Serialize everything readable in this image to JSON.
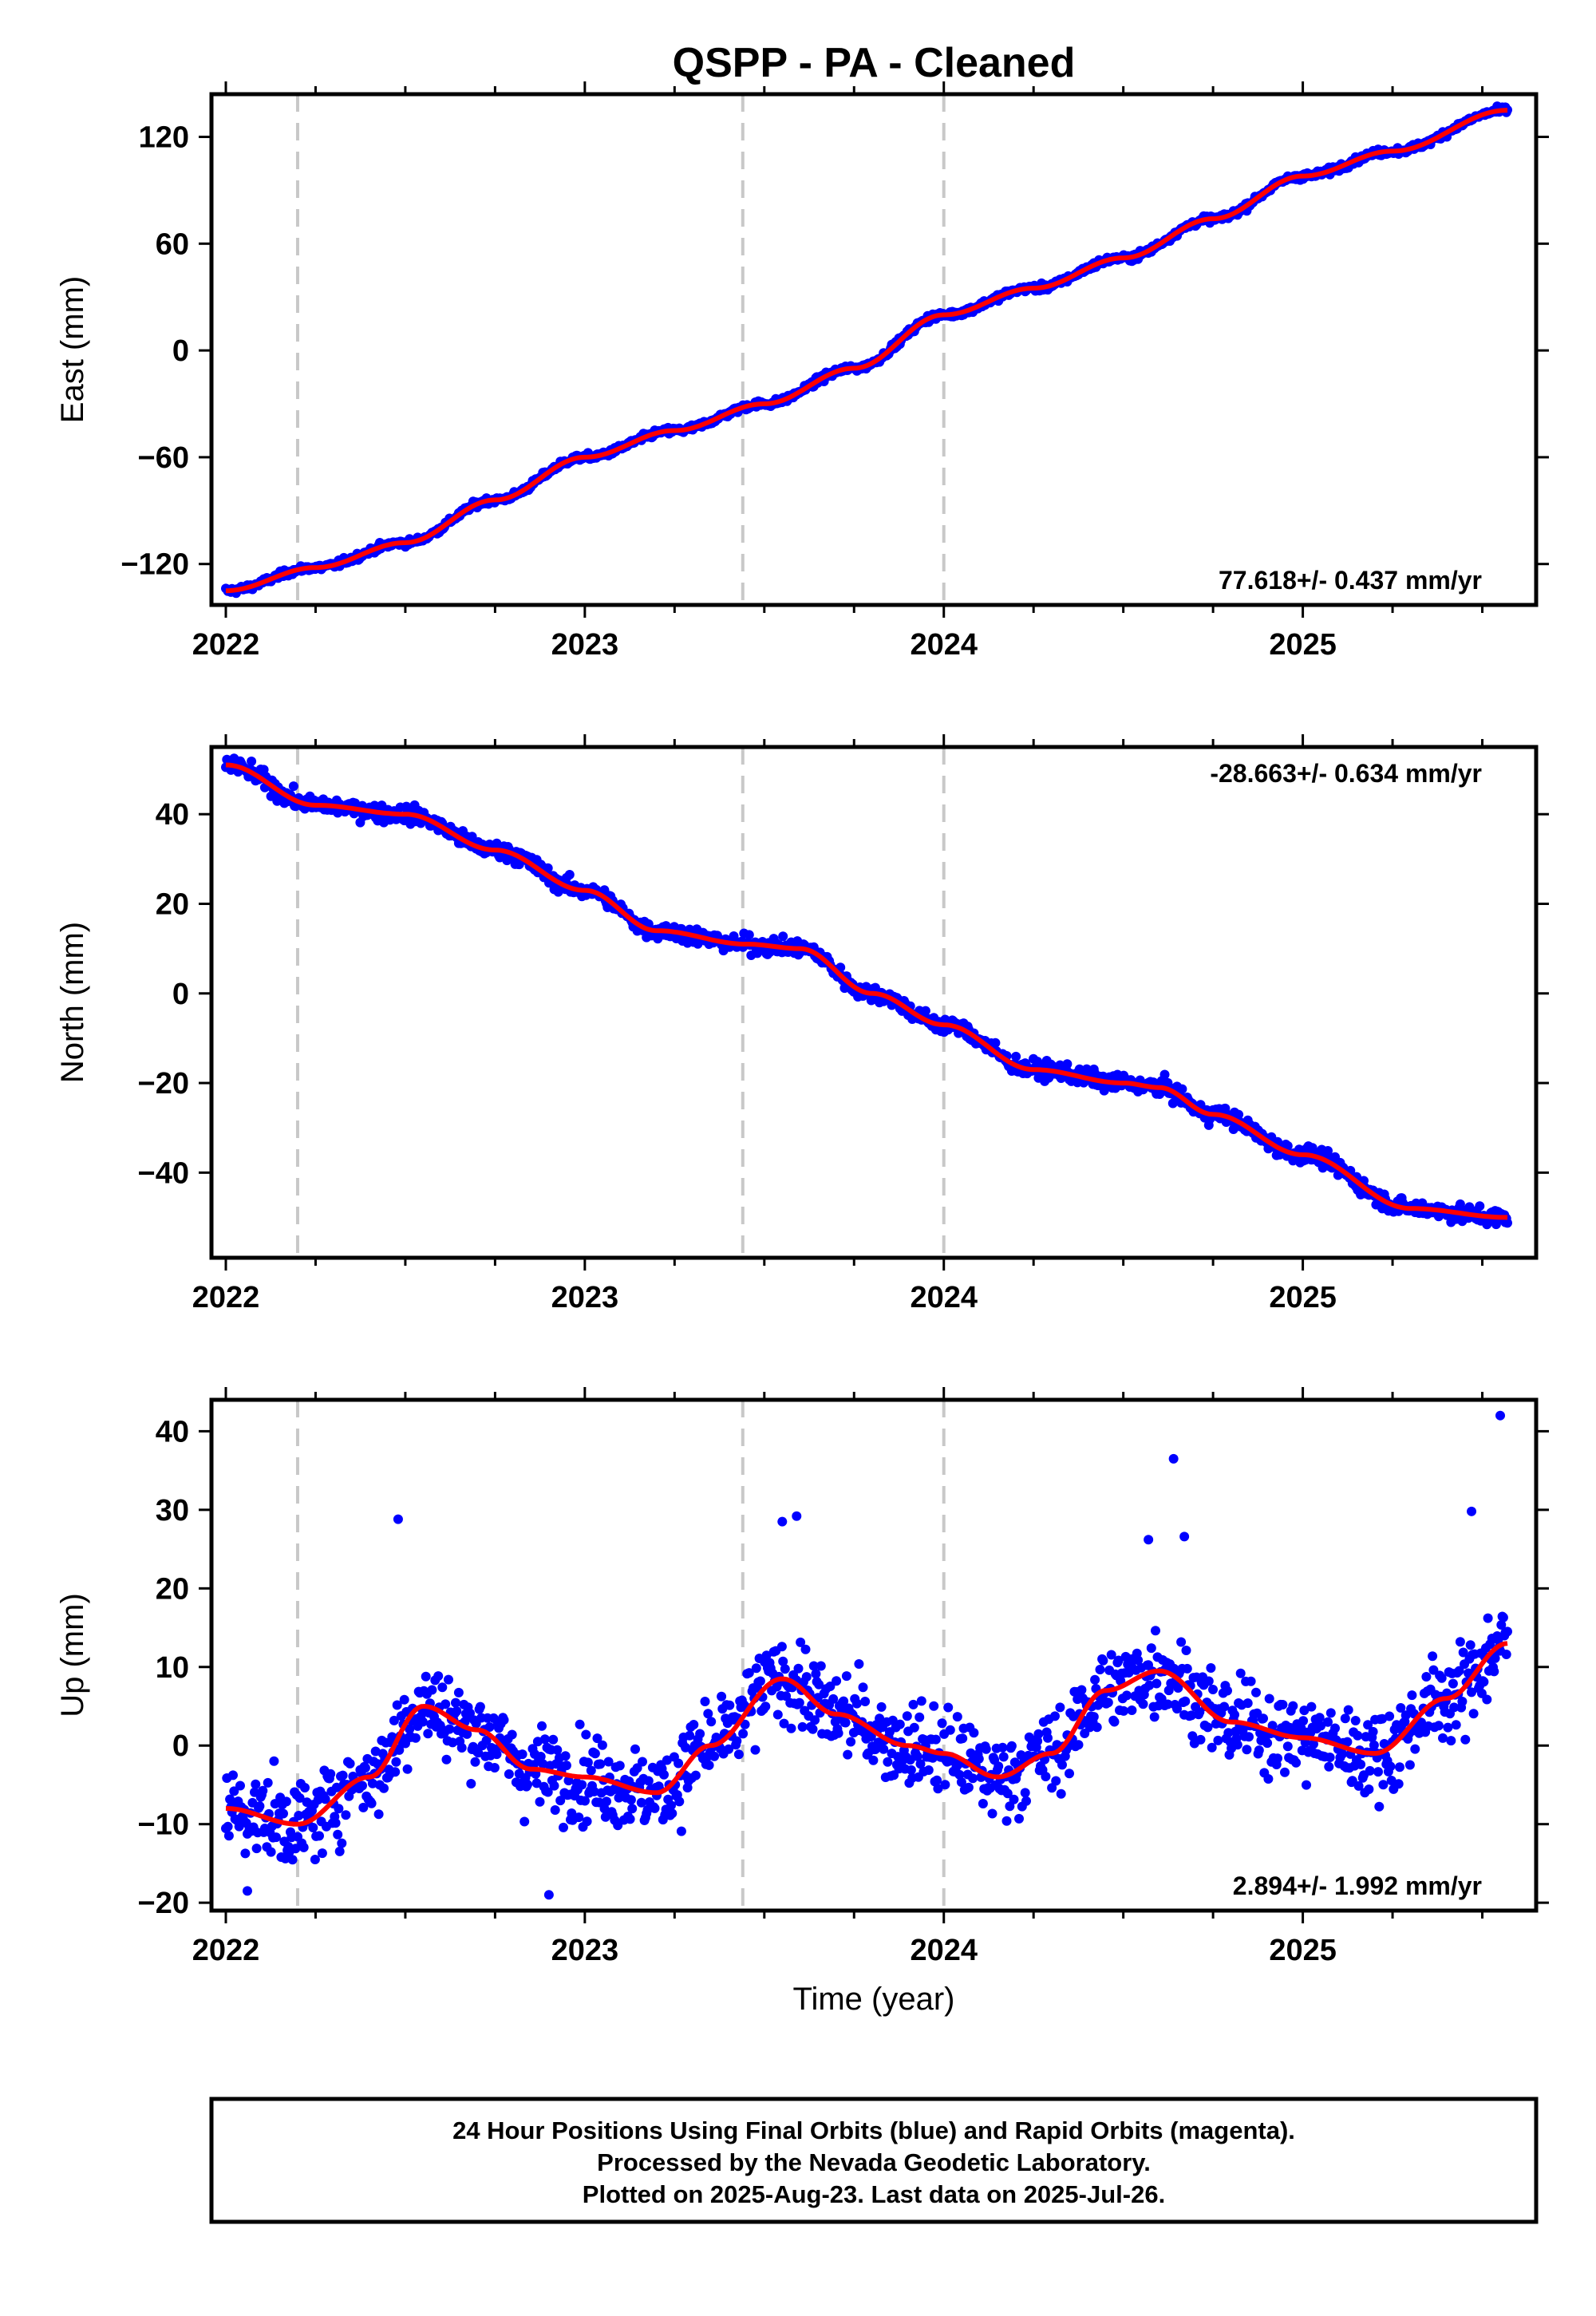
{
  "figure": {
    "title": "QSPP  - PA - Cleaned",
    "xlabel": "Time (year)",
    "note_lines": [
      "24 Hour Positions Using Final Orbits (blue) and Rapid Orbits (magenta).",
      "Processed by the Nevada Geodetic Laboratory.",
      "Plotted on 2025-Aug-23. Last data on 2025-Jul-26."
    ],
    "colors": {
      "points": "#0000ff",
      "fit": "#ff0000",
      "events": "#c8c8c8",
      "frame": "#000000"
    }
  },
  "chart_data": [
    {
      "type": "scatter",
      "ylabel": "East (mm)",
      "rate": "77.618+/- 0.437 mm/yr",
      "rate_position": "bottom-right",
      "xlim": [
        2021.96,
        2025.65
      ],
      "ylim": [
        -143,
        144
      ],
      "xticks": [
        2022,
        2023,
        2024,
        2025
      ],
      "xtick_labels": [
        "2022",
        "2023",
        "2024",
        "2025"
      ],
      "yticks": [
        -120,
        -60,
        0,
        60,
        120
      ],
      "ytick_labels": [
        "−120",
        "−60",
        "0",
        "60",
        "120"
      ],
      "event_lines": [
        2022.2,
        2023.44,
        2024.0
      ],
      "fit": {
        "x": [
          2022.0,
          2022.25,
          2022.5,
          2022.75,
          2023.0,
          2023.25,
          2023.5,
          2023.75,
          2024.0,
          2024.25,
          2024.5,
          2024.75,
          2025.0,
          2025.25,
          2025.57
        ],
        "y": [
          -135,
          -122,
          -108,
          -84,
          -60,
          -45,
          -30,
          -10,
          20,
          35,
          52,
          74,
          98,
          112,
          135
        ]
      },
      "noise": 1.6
    },
    {
      "type": "scatter",
      "ylabel": "North (mm)",
      "rate": "-28.663+/- 0.634 mm/yr",
      "rate_position": "top-right",
      "xlim": [
        2021.96,
        2025.65
      ],
      "ylim": [
        -59,
        55
      ],
      "xticks": [
        2022,
        2023,
        2024,
        2025
      ],
      "xtick_labels": [
        "2022",
        "2023",
        "2024",
        "2025"
      ],
      "yticks": [
        -40,
        -20,
        0,
        20,
        40
      ],
      "ytick_labels": [
        "−40",
        "−20",
        "0",
        "20",
        "40"
      ],
      "event_lines": [
        2022.2,
        2023.44,
        2024.0
      ],
      "fit": {
        "x": [
          2022.0,
          2022.25,
          2022.5,
          2022.75,
          2023.0,
          2023.2,
          2023.45,
          2023.6,
          2023.8,
          2024.0,
          2024.25,
          2024.5,
          2024.6,
          2024.75,
          2025.0,
          2025.3,
          2025.57
        ],
        "y": [
          51,
          42,
          40,
          32,
          23,
          14,
          11,
          10,
          0,
          -7,
          -17,
          -20,
          -21,
          -27,
          -36,
          -48,
          -50
        ]
      },
      "noise": 1.6
    },
    {
      "type": "scatter",
      "ylabel": "Up (mm)",
      "rate": "2.894+/- 1.992 mm/yr",
      "rate_position": "bottom-right",
      "xlim": [
        2021.96,
        2025.65
      ],
      "ylim": [
        -21,
        44
      ],
      "xticks": [
        2022,
        2023,
        2024,
        2025
      ],
      "xtick_labels": [
        "2022",
        "2023",
        "2024",
        "2025"
      ],
      "yticks": [
        -20,
        -10,
        0,
        10,
        20,
        30,
        40
      ],
      "ytick_labels": [
        "−20",
        "−10",
        "0",
        "10",
        "20",
        "30",
        "40"
      ],
      "event_lines": [
        2022.2,
        2023.44,
        2024.0
      ],
      "fit": {
        "x": [
          2022.0,
          2022.2,
          2022.4,
          2022.55,
          2022.7,
          2022.85,
          2023.0,
          2023.2,
          2023.35,
          2023.55,
          2023.7,
          2023.9,
          2024.0,
          2024.15,
          2024.3,
          2024.45,
          2024.6,
          2024.8,
          2025.0,
          2025.2,
          2025.4,
          2025.57
        ],
        "y": [
          -8,
          -10,
          -4,
          5,
          2,
          -3,
          -4,
          -6,
          0,
          8.5,
          4,
          0,
          -1,
          -4,
          -1,
          7,
          9.5,
          3,
          1,
          -1,
          6,
          13
        ]
      },
      "noise": 4.5,
      "outliers": [
        [
          2022.48,
          28.8
        ],
        [
          2023.55,
          28.5
        ],
        [
          2023.59,
          29.2
        ],
        [
          2024.57,
          26.2
        ],
        [
          2024.64,
          36.5
        ],
        [
          2024.67,
          26.6
        ],
        [
          2025.47,
          29.8
        ],
        [
          2025.55,
          42.0
        ],
        [
          2022.9,
          -19.0
        ],
        [
          2022.06,
          -18.5
        ]
      ]
    }
  ]
}
